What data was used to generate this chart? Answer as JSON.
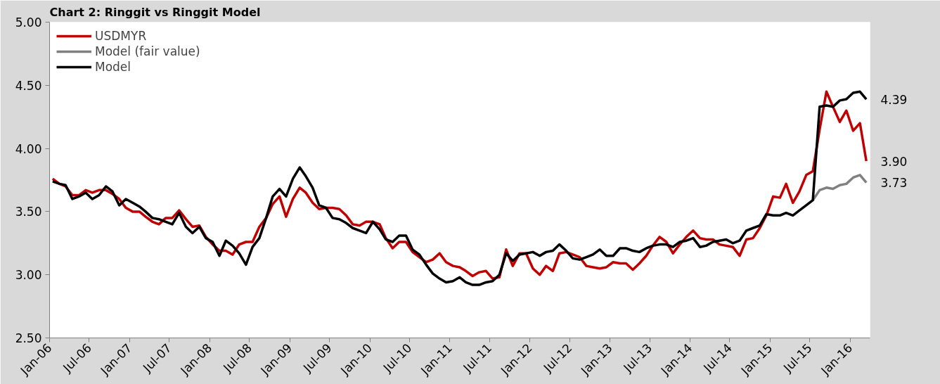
{
  "chart_data": {
    "type": "line",
    "title": "Chart 2: Ringgit vs Ringgit Model",
    "x": [
      "2006-01-15",
      "2006-02-15",
      "2006-03-15",
      "2006-04-15",
      "2006-05-15",
      "2006-06-15",
      "2006-07-15",
      "2006-08-15",
      "2006-09-15",
      "2006-10-15",
      "2006-11-15",
      "2006-12-15",
      "2007-01-15",
      "2007-02-15",
      "2007-03-15",
      "2007-04-15",
      "2007-05-15",
      "2007-06-15",
      "2007-07-15",
      "2007-08-15",
      "2007-09-15",
      "2007-10-15",
      "2007-11-15",
      "2007-12-15",
      "2008-01-15",
      "2008-02-15",
      "2008-03-15",
      "2008-04-15",
      "2008-05-15",
      "2008-06-15",
      "2008-07-15",
      "2008-08-15",
      "2008-09-15",
      "2008-10-15",
      "2008-11-15",
      "2008-12-15",
      "2009-01-15",
      "2009-02-15",
      "2009-03-15",
      "2009-04-15",
      "2009-05-15",
      "2009-06-15",
      "2009-07-15",
      "2009-08-15",
      "2009-09-15",
      "2009-10-15",
      "2009-11-15",
      "2009-12-15",
      "2010-01-15",
      "2010-02-15",
      "2010-03-15",
      "2010-04-15",
      "2010-05-15",
      "2010-06-15",
      "2010-07-15",
      "2010-08-15",
      "2010-09-15",
      "2010-10-15",
      "2010-11-15",
      "2010-12-15",
      "2011-01-15",
      "2011-02-15",
      "2011-03-15",
      "2011-04-15",
      "2011-05-15",
      "2011-06-15",
      "2011-07-15",
      "2011-08-15",
      "2011-09-15",
      "2011-10-15",
      "2011-11-15",
      "2011-12-15",
      "2012-01-15",
      "2012-02-15",
      "2012-03-15",
      "2012-04-15",
      "2012-05-15",
      "2012-06-15",
      "2012-07-15",
      "2012-08-15",
      "2012-09-15",
      "2012-10-15",
      "2012-11-15",
      "2012-12-15",
      "2013-01-15",
      "2013-02-15",
      "2013-03-15",
      "2013-04-15",
      "2013-05-15",
      "2013-06-15",
      "2013-07-15",
      "2013-08-15",
      "2013-09-15",
      "2013-10-15",
      "2013-11-15",
      "2013-12-15",
      "2014-01-15",
      "2014-02-15",
      "2014-03-15",
      "2014-04-15",
      "2014-05-15",
      "2014-06-15",
      "2014-07-15",
      "2014-08-15",
      "2014-09-15",
      "2014-10-15",
      "2014-11-15",
      "2014-12-15",
      "2015-01-15",
      "2015-02-15",
      "2015-03-15",
      "2015-04-15",
      "2015-05-15",
      "2015-06-15",
      "2015-07-15",
      "2015-08-15",
      "2015-09-15",
      "2015-10-15",
      "2015-11-15",
      "2015-12-15",
      "2016-01-15",
      "2016-02-15",
      "2016-03-15"
    ],
    "series": [
      {
        "name": "USDMYR",
        "color": "#c00000",
        "values": [
          3.76,
          3.72,
          3.7,
          3.63,
          3.63,
          3.67,
          3.65,
          3.67,
          3.67,
          3.64,
          3.6,
          3.53,
          3.5,
          3.5,
          3.46,
          3.42,
          3.4,
          3.45,
          3.45,
          3.51,
          3.44,
          3.38,
          3.39,
          3.3,
          3.24,
          3.19,
          3.19,
          3.16,
          3.24,
          3.26,
          3.26,
          3.38,
          3.45,
          3.56,
          3.62,
          3.46,
          3.6,
          3.69,
          3.65,
          3.57,
          3.52,
          3.53,
          3.53,
          3.52,
          3.47,
          3.4,
          3.39,
          3.42,
          3.42,
          3.4,
          3.29,
          3.21,
          3.26,
          3.26,
          3.18,
          3.14,
          3.1,
          3.12,
          3.17,
          3.1,
          3.07,
          3.06,
          3.03,
          2.99,
          3.02,
          3.03,
          2.97,
          2.98,
          3.2,
          3.07,
          3.17,
          3.17,
          3.05,
          3.0,
          3.07,
          3.03,
          3.17,
          3.18,
          3.16,
          3.14,
          3.07,
          3.06,
          3.05,
          3.06,
          3.1,
          3.09,
          3.09,
          3.04,
          3.09,
          3.15,
          3.23,
          3.3,
          3.26,
          3.17,
          3.24,
          3.3,
          3.35,
          3.29,
          3.28,
          3.28,
          3.24,
          3.23,
          3.22,
          3.15,
          3.28,
          3.29,
          3.37,
          3.47,
          3.62,
          3.61,
          3.72,
          3.57,
          3.66,
          3.79,
          3.82,
          4.15,
          4.45,
          4.33,
          4.21,
          4.3,
          4.14,
          4.2,
          3.9
        ]
      },
      {
        "name": "Model (fair value)",
        "color": "#808080",
        "x": [
          "2015-07-15",
          "2015-08-15",
          "2015-09-15",
          "2015-10-15",
          "2015-11-15",
          "2015-12-15",
          "2016-01-15",
          "2016-02-15",
          "2016-03-15"
        ],
        "values": [
          3.59,
          3.67,
          3.69,
          3.68,
          3.71,
          3.72,
          3.77,
          3.79,
          3.73
        ]
      },
      {
        "name": "Model",
        "color": "#000000",
        "values": [
          3.74,
          3.72,
          3.71,
          3.6,
          3.62,
          3.65,
          3.6,
          3.63,
          3.7,
          3.66,
          3.55,
          3.6,
          3.57,
          3.54,
          3.5,
          3.45,
          3.44,
          3.42,
          3.4,
          3.49,
          3.38,
          3.33,
          3.38,
          3.29,
          3.26,
          3.15,
          3.27,
          3.23,
          3.17,
          3.08,
          3.22,
          3.29,
          3.45,
          3.62,
          3.68,
          3.62,
          3.76,
          3.85,
          3.78,
          3.69,
          3.55,
          3.53,
          3.45,
          3.44,
          3.41,
          3.37,
          3.35,
          3.33,
          3.42,
          3.36,
          3.28,
          3.26,
          3.31,
          3.31,
          3.2,
          3.16,
          3.08,
          3.01,
          2.97,
          2.94,
          2.95,
          2.98,
          2.94,
          2.92,
          2.92,
          2.94,
          2.95,
          3.0,
          3.17,
          3.11,
          3.16,
          3.17,
          3.18,
          3.15,
          3.18,
          3.19,
          3.24,
          3.19,
          3.13,
          3.12,
          3.14,
          3.16,
          3.2,
          3.15,
          3.15,
          3.21,
          3.21,
          3.19,
          3.18,
          3.21,
          3.23,
          3.24,
          3.24,
          3.22,
          3.26,
          3.27,
          3.29,
          3.22,
          3.23,
          3.26,
          3.27,
          3.28,
          3.25,
          3.27,
          3.35,
          3.37,
          3.39,
          3.48,
          3.47,
          3.47,
          3.49,
          3.47,
          3.51,
          3.55,
          3.59,
          4.33,
          4.34,
          4.33,
          4.38,
          4.39,
          4.44,
          4.45,
          4.39
        ]
      }
    ],
    "annotations": [
      {
        "text": "4.39",
        "x": "2016-03-15",
        "y": 4.39
      },
      {
        "text": "3.90",
        "x": "2016-03-15",
        "y": 3.9
      },
      {
        "text": "3.73",
        "x": "2016-03-15",
        "y": 3.73
      }
    ],
    "xlim": [
      "2006-01-01",
      "2016-04-01"
    ],
    "xticks": [
      {
        "value": "2006-01-01",
        "label": "Jan-06"
      },
      {
        "value": "2006-07-01",
        "label": "Jul-06"
      },
      {
        "value": "2007-01-01",
        "label": "Jan-07"
      },
      {
        "value": "2007-07-01",
        "label": "Jul-07"
      },
      {
        "value": "2008-01-01",
        "label": "Jan-08"
      },
      {
        "value": "2008-07-01",
        "label": "Jul-08"
      },
      {
        "value": "2009-01-01",
        "label": "Jan-09"
      },
      {
        "value": "2009-07-01",
        "label": "Jul-09"
      },
      {
        "value": "2010-01-01",
        "label": "Jan-10"
      },
      {
        "value": "2010-07-01",
        "label": "Jul-10"
      },
      {
        "value": "2011-01-01",
        "label": "Jan-11"
      },
      {
        "value": "2011-07-01",
        "label": "Jul-11"
      },
      {
        "value": "2012-01-01",
        "label": "Jan-12"
      },
      {
        "value": "2012-07-01",
        "label": "Jul-12"
      },
      {
        "value": "2013-01-01",
        "label": "Jan-13"
      },
      {
        "value": "2013-07-01",
        "label": "Jul-13"
      },
      {
        "value": "2014-01-01",
        "label": "Jan-14"
      },
      {
        "value": "2014-07-01",
        "label": "Jul-14"
      },
      {
        "value": "2015-01-01",
        "label": "Jan-15"
      },
      {
        "value": "2015-07-01",
        "label": "Jul-15"
      },
      {
        "value": "2016-01-01",
        "label": "Jan-16"
      }
    ],
    "ylim": [
      2.5,
      5.0
    ],
    "yticks": [
      {
        "value": 2.5,
        "label": "2.50"
      },
      {
        "value": 3.0,
        "label": "3.00"
      },
      {
        "value": 3.5,
        "label": "3.50"
      },
      {
        "value": 4.0,
        "label": "4.00"
      },
      {
        "value": 4.5,
        "label": "4.50"
      },
      {
        "value": 5.0,
        "label": "5.00"
      }
    ],
    "grid": false,
    "legend": "top left",
    "line_style": "solid",
    "marker": "none"
  }
}
